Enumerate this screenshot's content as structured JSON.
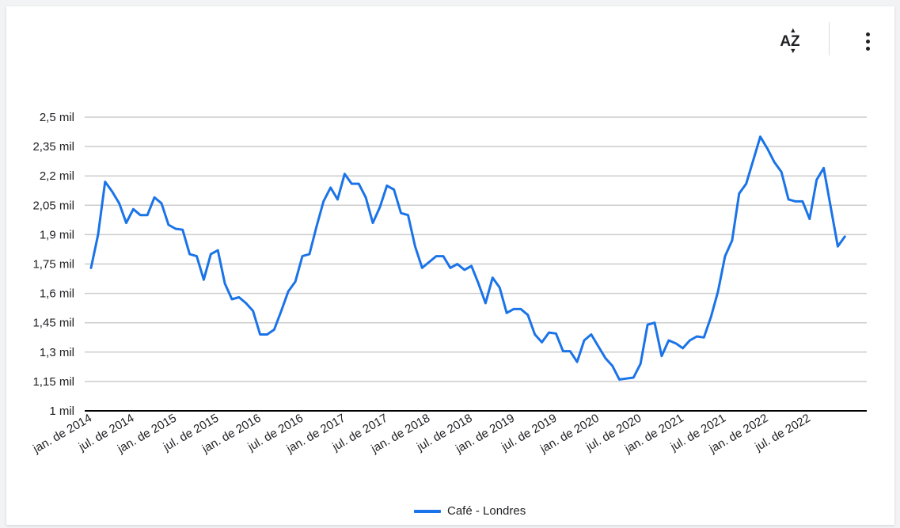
{
  "toolbar": {
    "sort_label": "AZ",
    "sort_icon": "sort-az-icon",
    "menu_icon": "more-vert-icon"
  },
  "colors": {
    "series": "#1a73e8",
    "grid": "#cccccc",
    "baseline": "#000000",
    "text": "#202124"
  },
  "chart_data": {
    "type": "line",
    "title": "",
    "xlabel": "",
    "ylabel": "",
    "ylim": [
      1000,
      2500
    ],
    "y_ticks": [
      1000,
      1150,
      1300,
      1450,
      1600,
      1750,
      1900,
      2050,
      2200,
      2350,
      2500
    ],
    "y_tick_labels": [
      "1 mil",
      "1,15 mil",
      "1,3 mil",
      "1,45 mil",
      "1,6 mil",
      "1,75 mil",
      "1,9 mil",
      "2,05 mil",
      "2,2 mil",
      "2,35 mil",
      "2,5 mil"
    ],
    "x_tick_labels": [
      "jan. de 2014",
      "jul. de 2014",
      "jan. de 2015",
      "jul. de 2015",
      "jan. de 2016",
      "jul. de 2016",
      "jan. de 2017",
      "jul. de 2017",
      "jan. de 2018",
      "jul. de 2018",
      "jan. de 2019",
      "jul. de 2019",
      "jan. de 2020",
      "jul. de 2020",
      "jan. de 2021",
      "jul. de 2021",
      "jan. de 2022",
      "jul. de 2022"
    ],
    "x_start": "jan. de 2014",
    "frequency": "monthly",
    "grid": true,
    "legend_position": "bottom",
    "series": [
      {
        "name": "Café - Londres",
        "color": "#1a73e8",
        "values": [
          1730,
          1900,
          2170,
          2120,
          2060,
          1960,
          2030,
          2000,
          2000,
          2090,
          2060,
          1950,
          1930,
          1925,
          1800,
          1790,
          1670,
          1800,
          1820,
          1650,
          1570,
          1580,
          1550,
          1510,
          1390,
          1390,
          1415,
          1510,
          1610,
          1660,
          1790,
          1800,
          1940,
          2070,
          2140,
          2080,
          2210,
          2160,
          2160,
          2090,
          1960,
          2040,
          2150,
          2130,
          2010,
          2000,
          1840,
          1730,
          1760,
          1790,
          1790,
          1730,
          1750,
          1720,
          1740,
          1650,
          1550,
          1680,
          1630,
          1500,
          1520,
          1520,
          1490,
          1390,
          1350,
          1400,
          1395,
          1305,
          1305,
          1250,
          1360,
          1390,
          1330,
          1270,
          1230,
          1160,
          1165,
          1170,
          1240,
          1440,
          1450,
          1280,
          1360,
          1345,
          1320,
          1360,
          1380,
          1375,
          1480,
          1610,
          1790,
          1870,
          2110,
          2160,
          2280,
          2400,
          2340,
          2270,
          2220,
          2080,
          2070,
          2070,
          1980,
          2180,
          2240,
          2040,
          1840,
          1890
        ]
      }
    ]
  }
}
